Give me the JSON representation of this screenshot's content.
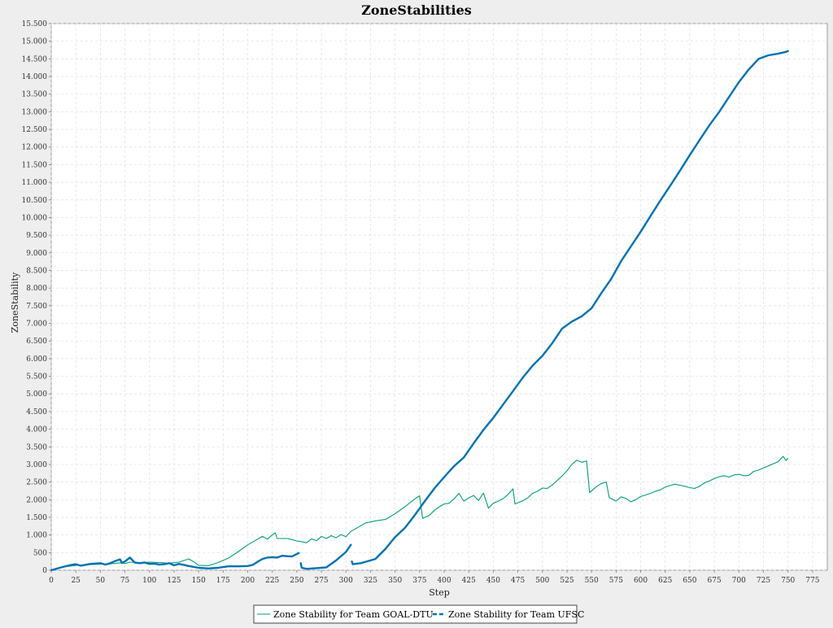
{
  "chart_data": {
    "type": "line",
    "title": "ZoneStabilities",
    "xlabel": "Step",
    "ylabel": "ZoneStability",
    "xlim": [
      0,
      790
    ],
    "ylim": [
      0,
      15500
    ],
    "x_ticks": [
      0,
      25,
      50,
      75,
      100,
      125,
      150,
      175,
      200,
      225,
      250,
      275,
      300,
      325,
      350,
      375,
      400,
      425,
      450,
      475,
      500,
      525,
      550,
      575,
      600,
      625,
      650,
      675,
      700,
      725,
      750,
      775
    ],
    "x_tick_labels": [
      "0",
      "25",
      "50",
      "75",
      "100",
      "125",
      "150",
      "175",
      "200",
      "225",
      "250",
      "275",
      "300",
      "325",
      "350",
      "375",
      "400",
      "425",
      "450",
      "475",
      "500",
      "525",
      "550",
      "575",
      "600",
      "625",
      "650",
      "675",
      "700",
      "725",
      "750",
      "775"
    ],
    "y_ticks": [
      0,
      500,
      1000,
      1500,
      2000,
      2500,
      3000,
      3500,
      4000,
      4500,
      5000,
      5500,
      6000,
      6500,
      7000,
      7500,
      8000,
      8500,
      9000,
      9500,
      10000,
      10500,
      11000,
      11500,
      12000,
      12500,
      13000,
      13500,
      14000,
      14500,
      15000,
      15500
    ],
    "y_tick_labels": [
      "0",
      "500",
      "1.000",
      "1.500",
      "2.000",
      "2.500",
      "3.000",
      "3.500",
      "4.000",
      "4.500",
      "5.000",
      "5.500",
      "6.000",
      "6.500",
      "7.000",
      "7.500",
      "8.000",
      "8.500",
      "9.000",
      "9.500",
      "10.000",
      "10.500",
      "11.000",
      "11.500",
      "12.000",
      "12.500",
      "13.000",
      "13.500",
      "14.000",
      "14.500",
      "15.000",
      "15.500"
    ],
    "grid": true,
    "legend_position": "bottom",
    "series": [
      {
        "name": "Zone Stability for Team GOAL-DTU",
        "color": "#009e73",
        "style": "solid-thin",
        "points": [
          [
            0,
            0
          ],
          [
            10,
            80
          ],
          [
            20,
            120
          ],
          [
            30,
            150
          ],
          [
            40,
            160
          ],
          [
            50,
            170
          ],
          [
            60,
            180
          ],
          [
            70,
            210
          ],
          [
            75,
            190
          ],
          [
            80,
            230
          ],
          [
            90,
            210
          ],
          [
            100,
            230
          ],
          [
            110,
            220
          ],
          [
            120,
            200
          ],
          [
            130,
            230
          ],
          [
            140,
            320
          ],
          [
            145,
            240
          ],
          [
            150,
            140
          ],
          [
            160,
            130
          ],
          [
            170,
            220
          ],
          [
            180,
            340
          ],
          [
            190,
            520
          ],
          [
            200,
            720
          ],
          [
            210,
            880
          ],
          [
            215,
            960
          ],
          [
            220,
            880
          ],
          [
            225,
            1000
          ],
          [
            228,
            1060
          ],
          [
            230,
            900
          ],
          [
            240,
            900
          ],
          [
            245,
            870
          ],
          [
            250,
            830
          ],
          [
            255,
            810
          ],
          [
            260,
            780
          ],
          [
            265,
            890
          ],
          [
            270,
            840
          ],
          [
            275,
            960
          ],
          [
            280,
            900
          ],
          [
            285,
            980
          ],
          [
            290,
            920
          ],
          [
            295,
            1010
          ],
          [
            300,
            950
          ],
          [
            305,
            1100
          ],
          [
            310,
            1180
          ],
          [
            320,
            1340
          ],
          [
            330,
            1400
          ],
          [
            340,
            1440
          ],
          [
            350,
            1600
          ],
          [
            360,
            1800
          ],
          [
            370,
            2020
          ],
          [
            375,
            2110
          ],
          [
            378,
            1470
          ],
          [
            385,
            1560
          ],
          [
            390,
            1700
          ],
          [
            395,
            1800
          ],
          [
            400,
            1880
          ],
          [
            405,
            1900
          ],
          [
            410,
            2020
          ],
          [
            415,
            2180
          ],
          [
            420,
            1960
          ],
          [
            425,
            2050
          ],
          [
            430,
            2120
          ],
          [
            435,
            1980
          ],
          [
            440,
            2190
          ],
          [
            445,
            1760
          ],
          [
            450,
            1900
          ],
          [
            455,
            1960
          ],
          [
            460,
            2030
          ],
          [
            465,
            2150
          ],
          [
            470,
            2310
          ],
          [
            472,
            1880
          ],
          [
            480,
            1970
          ],
          [
            485,
            2050
          ],
          [
            490,
            2180
          ],
          [
            495,
            2240
          ],
          [
            500,
            2330
          ],
          [
            505,
            2320
          ],
          [
            510,
            2420
          ],
          [
            520,
            2670
          ],
          [
            525,
            2820
          ],
          [
            530,
            3000
          ],
          [
            535,
            3120
          ],
          [
            540,
            3060
          ],
          [
            545,
            3100
          ],
          [
            548,
            2200
          ],
          [
            555,
            2370
          ],
          [
            560,
            2460
          ],
          [
            565,
            2500
          ],
          [
            568,
            2060
          ],
          [
            575,
            1960
          ],
          [
            580,
            2080
          ],
          [
            585,
            2040
          ],
          [
            590,
            1940
          ],
          [
            595,
            2000
          ],
          [
            600,
            2090
          ],
          [
            610,
            2180
          ],
          [
            615,
            2240
          ],
          [
            620,
            2280
          ],
          [
            625,
            2360
          ],
          [
            630,
            2400
          ],
          [
            635,
            2440
          ],
          [
            640,
            2410
          ],
          [
            645,
            2380
          ],
          [
            650,
            2340
          ],
          [
            655,
            2320
          ],
          [
            660,
            2380
          ],
          [
            665,
            2480
          ],
          [
            670,
            2530
          ],
          [
            675,
            2600
          ],
          [
            680,
            2650
          ],
          [
            685,
            2680
          ],
          [
            690,
            2640
          ],
          [
            695,
            2700
          ],
          [
            700,
            2720
          ],
          [
            705,
            2680
          ],
          [
            710,
            2690
          ],
          [
            715,
            2800
          ],
          [
            720,
            2840
          ],
          [
            725,
            2900
          ],
          [
            730,
            2960
          ],
          [
            735,
            3020
          ],
          [
            740,
            3080
          ],
          [
            745,
            3230
          ],
          [
            748,
            3110
          ],
          [
            750,
            3180
          ]
        ]
      },
      {
        "name": "Zone Stability for Team UFSC",
        "color": "#0072b2",
        "style": "thick-dashed",
        "segments": [
          [
            [
              0,
              0
            ],
            [
              10,
              80
            ],
            [
              20,
              150
            ],
            [
              25,
              170
            ],
            [
              30,
              130
            ],
            [
              40,
              180
            ],
            [
              50,
              200
            ],
            [
              55,
              160
            ],
            [
              60,
              200
            ],
            [
              65,
              260
            ],
            [
              70,
              310
            ],
            [
              72,
              210
            ],
            [
              75,
              250
            ],
            [
              80,
              360
            ],
            [
              85,
              220
            ],
            [
              90,
              200
            ],
            [
              95,
              220
            ],
            [
              100,
              180
            ],
            [
              105,
              190
            ],
            [
              110,
              160
            ],
            [
              115,
              170
            ],
            [
              120,
              200
            ],
            [
              125,
              140
            ],
            [
              130,
              180
            ],
            [
              140,
              120
            ],
            [
              150,
              70
            ],
            [
              160,
              50
            ],
            [
              170,
              70
            ],
            [
              180,
              110
            ],
            [
              190,
              110
            ],
            [
              200,
              120
            ],
            [
              205,
              150
            ],
            [
              210,
              240
            ],
            [
              215,
              320
            ],
            [
              220,
              360
            ],
            [
              225,
              370
            ],
            [
              230,
              360
            ],
            [
              235,
              410
            ],
            [
              240,
              400
            ],
            [
              245,
              390
            ],
            [
              250,
              460
            ],
            [
              252,
              490
            ]
          ],
          [
            [
              254,
              200
            ],
            [
              255,
              70
            ],
            [
              260,
              40
            ],
            [
              270,
              60
            ],
            [
              280,
              80
            ],
            [
              290,
              280
            ],
            [
              300,
              520
            ],
            [
              305,
              720
            ]
          ],
          [
            [
              306,
              250
            ],
            [
              307,
              170
            ],
            [
              315,
              200
            ],
            [
              320,
              240
            ],
            [
              330,
              320
            ],
            [
              340,
              600
            ],
            [
              350,
              940
            ],
            [
              360,
              1200
            ],
            [
              370,
              1560
            ],
            [
              380,
              1950
            ],
            [
              390,
              2320
            ],
            [
              400,
              2640
            ],
            [
              410,
              2950
            ],
            [
              420,
              3200
            ],
            [
              430,
              3600
            ],
            [
              440,
              3980
            ],
            [
              450,
              4320
            ],
            [
              460,
              4700
            ],
            [
              470,
              5080
            ],
            [
              480,
              5460
            ],
            [
              490,
              5800
            ],
            [
              500,
              6080
            ],
            [
              510,
              6440
            ],
            [
              520,
              6850
            ],
            [
              530,
              7050
            ],
            [
              540,
              7200
            ],
            [
              550,
              7430
            ],
            [
              560,
              7860
            ],
            [
              570,
              8260
            ],
            [
              580,
              8760
            ],
            [
              590,
              9180
            ],
            [
              600,
              9600
            ],
            [
              610,
              10040
            ],
            [
              620,
              10480
            ],
            [
              630,
              10900
            ],
            [
              640,
              11330
            ],
            [
              650,
              11770
            ],
            [
              660,
              12200
            ],
            [
              670,
              12620
            ],
            [
              680,
              13000
            ],
            [
              690,
              13420
            ],
            [
              700,
              13840
            ],
            [
              710,
              14200
            ],
            [
              720,
              14500
            ],
            [
              730,
              14600
            ],
            [
              740,
              14650
            ],
            [
              745,
              14680
            ],
            [
              748,
              14700
            ],
            [
              750,
              14720
            ]
          ]
        ]
      }
    ]
  }
}
